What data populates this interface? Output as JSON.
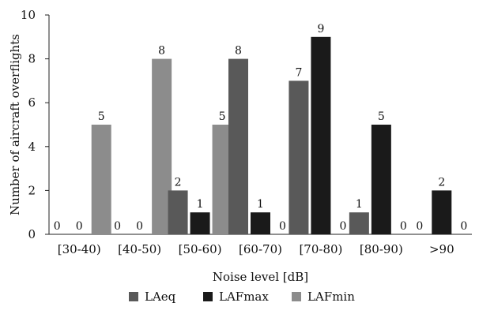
{
  "chart_data": {
    "type": "bar",
    "title": "",
    "xlabel": "Noise level [dB]",
    "ylabel": "Number of aircraft overflights",
    "ylim": [
      0,
      10
    ],
    "yticks": [
      0,
      2,
      4,
      6,
      8,
      10
    ],
    "grid": false,
    "legend": "bottom",
    "categories": [
      "[30-40)",
      "[40-50)",
      "[50-60)",
      "[60-70)",
      "[70-80)",
      "[80-90)",
      ">90"
    ],
    "series": [
      {
        "name": "LAeq",
        "color": "#595959",
        "values": [
          0,
          0,
          2,
          8,
          7,
          1,
          0
        ]
      },
      {
        "name": "LAFmax",
        "color": "#1a1a1a",
        "values": [
          0,
          0,
          1,
          1,
          9,
          5,
          2
        ]
      },
      {
        "name": "LAFmin",
        "color": "#8c8c8c",
        "values": [
          5,
          8,
          5,
          0,
          0,
          0,
          0
        ]
      }
    ]
  }
}
